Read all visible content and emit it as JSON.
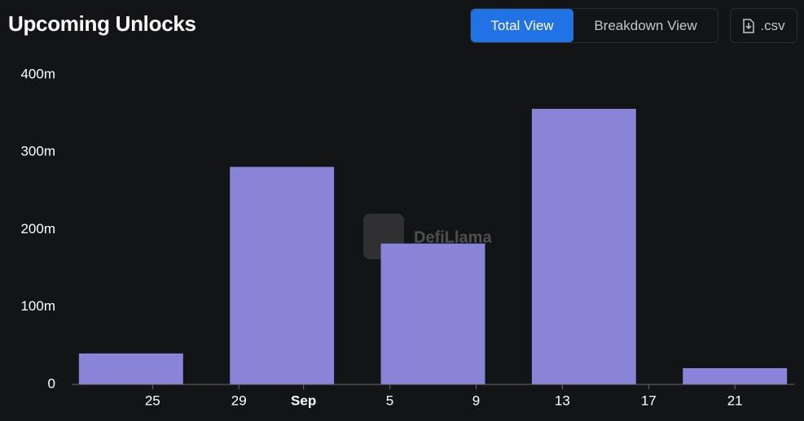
{
  "header": {
    "title": "Upcoming Unlocks",
    "buttons": [
      "Total View",
      "Breakdown View"
    ],
    "download": ".csv"
  },
  "chart_data": {
    "type": "bar",
    "watermark": "DefiLlama",
    "color": "#8884d8",
    "x": [
      24,
      31,
      38,
      45,
      52
    ],
    "values": [
      40,
      281,
      182,
      356,
      21
    ],
    "xlim": [
      21.25,
      54.75
    ],
    "xticks": [
      {
        "value": 25,
        "label": "25"
      },
      {
        "value": 29,
        "label": "29"
      },
      {
        "value": 32,
        "label": "Sep"
      },
      {
        "value": 36,
        "label": "5"
      },
      {
        "value": 40,
        "label": "9"
      },
      {
        "value": 44,
        "label": "13"
      },
      {
        "value": 48,
        "label": "17"
      },
      {
        "value": 52,
        "label": "21"
      }
    ],
    "ylim": [
      0,
      400
    ],
    "yticks": [
      {
        "value": 0,
        "label": "0"
      },
      {
        "value": 100,
        "label": "100m"
      },
      {
        "value": 200,
        "label": "200m"
      },
      {
        "value": 300,
        "label": "300m"
      },
      {
        "value": 400,
        "label": "400m"
      }
    ],
    "grid": false
  }
}
